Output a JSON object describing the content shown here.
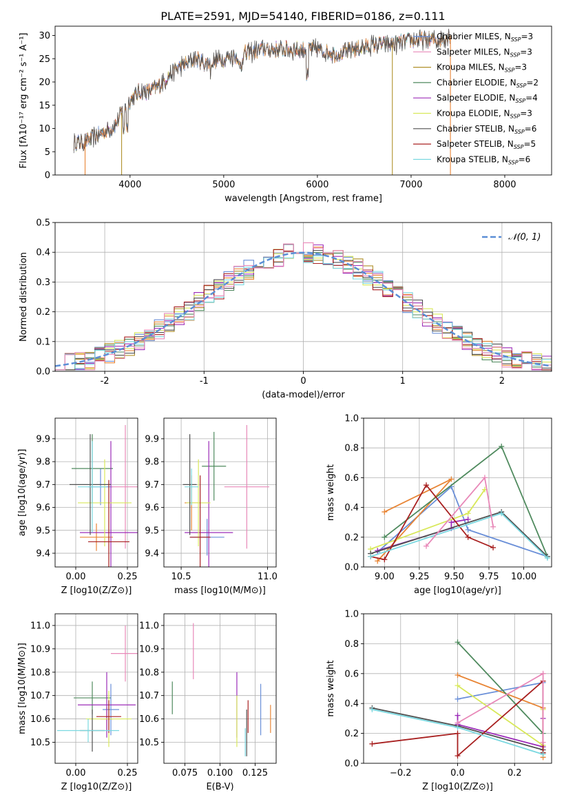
{
  "figure_title": "PLATE=2591, MJD=54140, FIBERID=0186, z=0.111",
  "model_colors": [
    "#6a8fd8",
    "#e88535",
    "#b0902a",
    "#4f8a5e",
    "#9b2bb8",
    "#d8e85a",
    "#505050",
    "#a82020",
    "#7ad8e0",
    "#e888b8"
  ],
  "chart_data": [
    {
      "id": "spectrum",
      "type": "line",
      "title": "PLATE=2591, MJD=54140, FIBERID=0186, z=0.111",
      "xlabel": "wavelength [Angstrom, rest frame]",
      "ylabel": "Flux [fλ10⁻¹⁷ erg cm⁻² s⁻¹ A⁻¹]",
      "xlim": [
        3200,
        8500
      ],
      "ylim": [
        0,
        32
      ],
      "xticks": [
        4000,
        5000,
        6000,
        7000,
        8000
      ],
      "yticks": [
        0,
        5,
        10,
        15,
        20,
        25,
        30
      ],
      "legend_position": "top-right",
      "legend_entries": [
        {
          "name": "Chabrier MILES, N_SSP=3",
          "color": "#6a8fd8"
        },
        {
          "name": "Salpeter MILES, N_SSP=3",
          "color": "#e888b8"
        },
        {
          "name": "Kroupa MILES, N_SSP=3",
          "color": "#b0902a"
        },
        {
          "name": "Chabrier ELODIE, N_SSP=2",
          "color": "#4f8a5e"
        },
        {
          "name": "Salpeter ELODIE, N_SSP=4",
          "color": "#9b2bb8"
        },
        {
          "name": "Kroupa ELODIE, N_SSP=3",
          "color": "#d8e85a"
        },
        {
          "name": "Chabrier STELIB, N_SSP=6",
          "color": "#505050"
        },
        {
          "name": "Salpeter STELIB, N_SSP=5",
          "color": "#a82020"
        },
        {
          "name": "Kroupa STELIB, N_SSP=6",
          "color": "#7ad8e0"
        }
      ],
      "continuum": {
        "x": [
          3400,
          3500,
          3600,
          3700,
          3800,
          3850,
          3900,
          3950,
          4000,
          4100,
          4200,
          4300,
          4400,
          4500,
          4600,
          4700,
          4800,
          5000,
          5200,
          5400,
          5600,
          5800,
          6000,
          6200,
          6400,
          6600,
          6800,
          7000,
          7200,
          7300,
          7400
        ],
        "y": [
          7,
          7,
          8,
          9,
          10,
          11,
          13,
          15,
          16,
          18,
          18,
          19,
          21,
          23,
          24,
          25,
          24,
          25,
          26,
          27,
          27,
          27,
          27,
          26,
          27,
          28,
          28,
          29,
          29,
          29,
          30
        ]
      },
      "dropouts": [
        {
          "x": 3520,
          "color": "#e88535"
        },
        {
          "x": 3910,
          "color": "#b0902a"
        },
        {
          "x": 6800,
          "color": "#b0902a"
        },
        {
          "x": 7420,
          "color": "#e88535"
        }
      ]
    },
    {
      "id": "residuals",
      "type": "histogram",
      "xlabel": "(data-model)/error",
      "ylabel": "Normed distribution",
      "xlim": [
        -2.5,
        2.5
      ],
      "ylim": [
        0,
        0.5
      ],
      "xticks": [
        -2,
        -1,
        0,
        1,
        2
      ],
      "yticks": [
        0.0,
        0.1,
        0.2,
        0.3,
        0.4,
        0.5
      ],
      "bin_edges_start": -2.5,
      "bin_width": 0.1,
      "gaussian": {
        "name": "𝒩(0, 1)",
        "mean": 0,
        "sigma": 1,
        "color": "#5b8ed6"
      },
      "legend_position": "top-right"
    },
    {
      "id": "age_vs_Z",
      "type": "errorbar",
      "xlabel": "Z [log10(Z/Z⊙)]",
      "ylabel": "age [log10(age/yr)]",
      "xlim": [
        -0.1,
        0.3
      ],
      "ylim": [
        9.34,
        9.99
      ],
      "xticks": [
        0.0,
        0.25
      ],
      "xticklabels": [
        "0.00",
        "0.25"
      ],
      "yticks": [
        9.4,
        9.5,
        9.6,
        9.7,
        9.8,
        9.9
      ],
      "points": [
        {
          "x": 0.12,
          "xerr": 0.06,
          "y": 9.69,
          "yerr": 0.08,
          "color": "#6a8fd8"
        },
        {
          "x": 0.24,
          "xerr": 0.07,
          "y": 9.69,
          "yerr": 0.27,
          "color": "#e888b8"
        },
        {
          "x": 0.1,
          "xerr": 0.08,
          "y": 9.47,
          "yerr": 0.06,
          "color": "#e88535"
        },
        {
          "x": 0.08,
          "xerr": 0.1,
          "y": 9.77,
          "yerr": 0.15,
          "color": "#4f8a5e"
        },
        {
          "x": 0.17,
          "xerr": 0.15,
          "y": 9.49,
          "yerr": 0.4,
          "color": "#9b2bb8"
        },
        {
          "x": 0.14,
          "xerr": 0.13,
          "y": 9.62,
          "yerr": 0.19,
          "color": "#d8e85a"
        },
        {
          "x": 0.07,
          "xerr": 0.1,
          "y": 9.7,
          "yerr": 0.22,
          "color": "#505050"
        },
        {
          "x": 0.16,
          "xerr": 0.1,
          "y": 9.45,
          "yerr": 0.27,
          "color": "#a82020"
        },
        {
          "x": 0.08,
          "xerr": 0.07,
          "y": 9.69,
          "yerr": 0.2,
          "color": "#7ad8e0"
        }
      ]
    },
    {
      "id": "age_vs_mass",
      "type": "errorbar",
      "xlabel": "mass [log10(M/M⊙)]",
      "ylabel": "",
      "xlim": [
        10.4,
        11.05
      ],
      "ylim": [
        9.34,
        9.99
      ],
      "xticks": [
        10.5,
        11.0
      ],
      "xticklabels": [
        "10.5",
        "11.0"
      ],
      "yticks": [
        9.4,
        9.5,
        9.6,
        9.7,
        9.8,
        9.9
      ],
      "points": [
        {
          "x": 10.65,
          "xerr": 0.1,
          "y": 9.47,
          "yerr": 0.08,
          "color": "#6a8fd8"
        },
        {
          "x": 10.88,
          "xerr": 0.13,
          "y": 9.69,
          "yerr": 0.27,
          "color": "#e888b8"
        },
        {
          "x": 10.56,
          "xerr": 0.04,
          "y": 9.62,
          "yerr": 0.12,
          "color": "#e88535"
        },
        {
          "x": 10.69,
          "xerr": 0.07,
          "y": 9.78,
          "yerr": 0.15,
          "color": "#4f8a5e"
        },
        {
          "x": 10.66,
          "xerr": 0.14,
          "y": 9.49,
          "yerr": 0.4,
          "color": "#9b2bb8"
        },
        {
          "x": 10.6,
          "xerr": 0.07,
          "y": 9.62,
          "yerr": 0.19,
          "color": "#d8e85a"
        },
        {
          "x": 10.55,
          "xerr": 0.04,
          "y": 9.7,
          "yerr": 0.22,
          "color": "#505050"
        },
        {
          "x": 10.61,
          "xerr": 0.06,
          "y": 9.47,
          "yerr": 0.27,
          "color": "#a82020"
        },
        {
          "x": 10.56,
          "xerr": 0.04,
          "y": 9.69,
          "yerr": 0.08,
          "color": "#7ad8e0"
        }
      ]
    },
    {
      "id": "massweight_vs_age",
      "type": "line",
      "xlabel": "age [log10(age/yr)]",
      "ylabel": "mass weight",
      "xlim": [
        8.85,
        10.2
      ],
      "ylim": [
        0.0,
        1.0
      ],
      "xticks": [
        9.0,
        9.25,
        9.5,
        9.75,
        10.0
      ],
      "xticklabels": [
        "9.00",
        "9.25",
        "9.50",
        "9.75",
        "10.00"
      ],
      "yticks": [
        0.0,
        0.2,
        0.4,
        0.6,
        0.8,
        1.0
      ],
      "series": [
        {
          "color": "#6a8fd8",
          "x": [
            8.95,
            9.48,
            9.6,
            10.17
          ],
          "y": [
            0.1,
            0.54,
            0.25,
            0.07
          ]
        },
        {
          "color": "#e88535",
          "x": [
            8.95,
            9.48,
            9.0
          ],
          "y": [
            0.04,
            0.59,
            0.37
          ]
        },
        {
          "color": "#4f8a5e",
          "x": [
            9.0,
            9.84,
            10.17
          ],
          "y": [
            0.2,
            0.81,
            0.07
          ]
        },
        {
          "color": "#9b2bb8",
          "x": [
            8.95,
            9.48,
            9.48,
            9.6
          ],
          "y": [
            0.11,
            0.26,
            0.3,
            0.32
          ]
        },
        {
          "color": "#d8e85a",
          "x": [
            8.9,
            9.6,
            9.72
          ],
          "y": [
            0.12,
            0.36,
            0.52
          ]
        },
        {
          "color": "#505050",
          "x": [
            8.9,
            9.84,
            10.17
          ],
          "y": [
            0.09,
            0.37,
            0.07
          ]
        },
        {
          "color": "#a82020",
          "x": [
            8.9,
            9.0,
            9.3,
            9.6,
            9.78
          ],
          "y": [
            0.07,
            0.05,
            0.55,
            0.2,
            0.13
          ]
        },
        {
          "color": "#7ad8e0",
          "x": [
            8.9,
            9.84,
            10.17
          ],
          "y": [
            0.07,
            0.36,
            0.06
          ]
        },
        {
          "color": "#e888b8",
          "x": [
            9.3,
            9.72,
            9.78
          ],
          "y": [
            0.14,
            0.6,
            0.27
          ]
        }
      ]
    },
    {
      "id": "mass_vs_Z",
      "type": "errorbar",
      "xlabel": "Z [log10(Z/Z⊙)]",
      "ylabel": "mass [log10(M/M⊙)]",
      "xlim": [
        -0.1,
        0.3
      ],
      "ylim": [
        10.41,
        11.05
      ],
      "xticks": [
        0.0,
        0.25
      ],
      "xticklabels": [
        "0.00",
        "0.25"
      ],
      "yticks": [
        10.5,
        10.6,
        10.7,
        10.8,
        10.9,
        11.0
      ],
      "points": [
        {
          "x": 0.17,
          "xerr": 0.04,
          "y": 10.64,
          "yerr": 0.11,
          "color": "#6a8fd8"
        },
        {
          "x": 0.24,
          "xerr": 0.07,
          "y": 10.88,
          "yerr": 0.12,
          "color": "#e888b8"
        },
        {
          "x": 0.15,
          "xerr": 0.03,
          "y": 10.6,
          "yerr": 0.05,
          "color": "#e88535"
        },
        {
          "x": 0.08,
          "xerr": 0.09,
          "y": 10.69,
          "yerr": 0.07,
          "color": "#4f8a5e"
        },
        {
          "x": 0.15,
          "xerr": 0.14,
          "y": 10.66,
          "yerr": 0.14,
          "color": "#9b2bb8"
        },
        {
          "x": 0.16,
          "xerr": 0.11,
          "y": 10.6,
          "yerr": 0.12,
          "color": "#d8e85a"
        },
        {
          "x": 0.08,
          "xerr": 0.06,
          "y": 10.55,
          "yerr": 0.09,
          "color": "#505050"
        },
        {
          "x": 0.16,
          "xerr": 0.06,
          "y": 10.61,
          "yerr": 0.07,
          "color": "#a82020"
        },
        {
          "x": 0.06,
          "xerr": 0.15,
          "y": 10.55,
          "yerr": 0.05,
          "color": "#7ad8e0"
        }
      ]
    },
    {
      "id": "mass_vs_EBV",
      "type": "errorbar",
      "xlabel": "E(B-V)",
      "ylabel": "",
      "xlim": [
        0.06,
        0.14
      ],
      "ylim": [
        10.41,
        11.05
      ],
      "xticks": [
        0.075,
        0.1,
        0.125
      ],
      "xticklabels": [
        "0.075",
        "0.100",
        "0.125"
      ],
      "yticks": [
        10.5,
        10.6,
        10.7,
        10.8,
        10.9,
        11.0
      ],
      "points": [
        {
          "x": 0.129,
          "xerr": 0,
          "y": 10.64,
          "yerr": 0.11,
          "color": "#6a8fd8"
        },
        {
          "x": 0.081,
          "xerr": 0,
          "y": 10.89,
          "yerr": 0.12,
          "color": "#e888b8"
        },
        {
          "x": 0.136,
          "xerr": 0,
          "y": 10.6,
          "yerr": 0.06,
          "color": "#e88535"
        },
        {
          "x": 0.066,
          "xerr": 0,
          "y": 10.69,
          "yerr": 0.07,
          "color": "#4f8a5e"
        },
        {
          "x": 0.112,
          "xerr": 0,
          "y": 10.66,
          "yerr": 0.14,
          "color": "#9b2bb8"
        },
        {
          "x": 0.112,
          "xerr": 0,
          "y": 10.59,
          "yerr": 0.11,
          "color": "#d8e85a"
        },
        {
          "x": 0.119,
          "xerr": 0,
          "y": 10.54,
          "yerr": 0.1,
          "color": "#505050"
        },
        {
          "x": 0.12,
          "xerr": 0,
          "y": 10.61,
          "yerr": 0.07,
          "color": "#a82020"
        },
        {
          "x": 0.118,
          "xerr": 0,
          "y": 10.5,
          "yerr": 0.06,
          "color": "#7ad8e0"
        }
      ]
    },
    {
      "id": "massweight_vs_Z",
      "type": "line",
      "xlabel": "Z [log10(Z/Z⊙)]",
      "ylabel": "mass weight",
      "xlim": [
        -0.33,
        0.33
      ],
      "ylim": [
        0.0,
        1.0
      ],
      "xticks": [
        -0.2,
        0.0,
        0.2
      ],
      "xticklabels": [
        "−0.2",
        "0.0",
        "0.2"
      ],
      "yticks": [
        0.0,
        0.2,
        0.4,
        0.6,
        0.8,
        1.0
      ],
      "series": [
        {
          "color": "#6a8fd8",
          "x": [
            0.0,
            0.3,
            0.3
          ],
          "y": [
            0.43,
            0.54,
            0.07
          ]
        },
        {
          "color": "#e88535",
          "x": [
            0.0,
            0.3,
            0.3
          ],
          "y": [
            0.59,
            0.37,
            0.04
          ]
        },
        {
          "color": "#4f8a5e",
          "x": [
            0.0,
            0.3,
            0.3
          ],
          "y": [
            0.81,
            0.2,
            0.07
          ]
        },
        {
          "color": "#9b2bb8",
          "x": [
            0.0,
            0.0,
            0.3,
            0.3
          ],
          "y": [
            0.32,
            0.26,
            0.11,
            0.3
          ]
        },
        {
          "color": "#d8e85a",
          "x": [
            0.0,
            0.3,
            0.3
          ],
          "y": [
            0.52,
            0.12,
            0.36
          ]
        },
        {
          "color": "#505050",
          "x": [
            -0.3,
            0.0,
            0.3
          ],
          "y": [
            0.37,
            0.25,
            0.09
          ]
        },
        {
          "color": "#a82020",
          "x": [
            -0.3,
            0.0,
            0.0,
            0.3,
            0.3
          ],
          "y": [
            0.13,
            0.2,
            0.05,
            0.55,
            0.07
          ]
        },
        {
          "color": "#7ad8e0",
          "x": [
            -0.3,
            0.0,
            0.3
          ],
          "y": [
            0.36,
            0.24,
            0.06
          ]
        },
        {
          "color": "#e888b8",
          "x": [
            0.0,
            0.3,
            0.3
          ],
          "y": [
            0.27,
            0.6,
            0.14
          ]
        }
      ]
    }
  ]
}
